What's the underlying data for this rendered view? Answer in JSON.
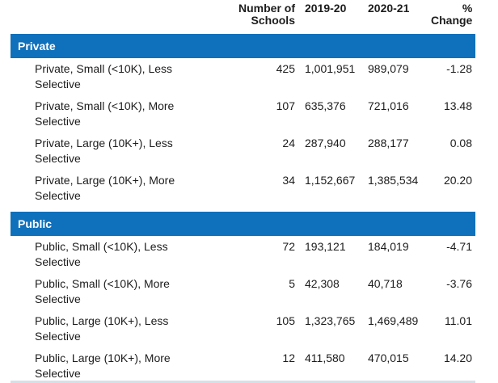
{
  "colors": {
    "section_bar": "#0f70bc",
    "section_bar_text": "#ffffff",
    "body_text": "#1c1c1c"
  },
  "table": {
    "col_headers": {
      "schools": "Number of Schools",
      "year1": "2019-20",
      "year2": "2020-21",
      "pct_change": "% Change"
    },
    "sections": [
      {
        "title": "Private",
        "rows": [
          {
            "label": "Private, Small (<10K), Less Selective",
            "schools": "425",
            "year1": "1,001,951",
            "year2": "989,079",
            "pct": "-1.28"
          },
          {
            "label": "Private, Small (<10K), More Selective",
            "schools": "107",
            "year1": "635,376",
            "year2": "721,016",
            "pct": "13.48"
          },
          {
            "label": "Private, Large (10K+), Less Selective",
            "schools": "24",
            "year1": "287,940",
            "year2": "288,177",
            "pct": "0.08"
          },
          {
            "label": "Private, Large (10K+), More Selective",
            "schools": "34",
            "year1": "1,152,667",
            "year2": "1,385,534",
            "pct": "20.20"
          }
        ]
      },
      {
        "title": "Public",
        "rows": [
          {
            "label": "Public, Small (<10K), Less Selective",
            "schools": "72",
            "year1": "193,121",
            "year2": "184,019",
            "pct": "-4.71"
          },
          {
            "label": "Public, Small (<10K), More Selective",
            "schools": "5",
            "year1": "42,308",
            "year2": "40,718",
            "pct": "-3.76"
          },
          {
            "label": "Public, Large (10K+), Less Selective",
            "schools": "105",
            "year1": "1,323,765",
            "year2": "1,469,489",
            "pct": "11.01"
          },
          {
            "label": "Public, Large (10K+), More Selective",
            "schools": "12",
            "year1": "411,580",
            "year2": "470,015",
            "pct": "14.20"
          }
        ]
      }
    ]
  }
}
